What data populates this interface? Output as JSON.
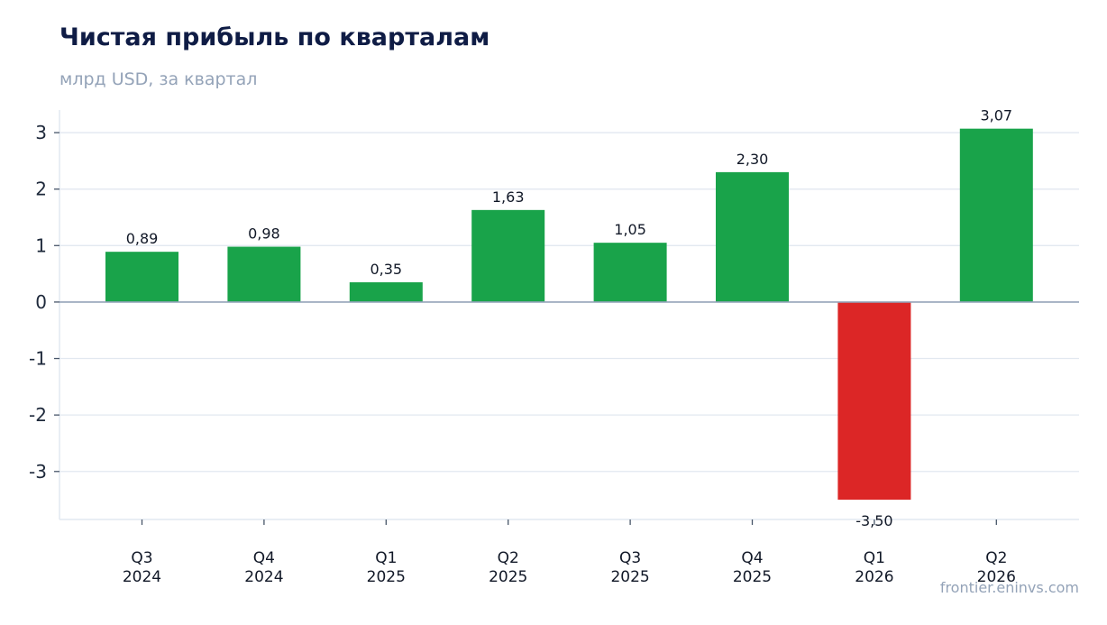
{
  "title": "Чистая прибыль по кварталам",
  "subtitle": "млрд USD, за квартал",
  "source": "frontier.eninvs.com",
  "colors": {
    "positive": "#19a34a",
    "negative": "#dc2626",
    "grid": "#e2e8f0",
    "zero_line": "#94a3b8",
    "title": "#0f1c45",
    "muted": "#94a3b8"
  },
  "chart_data": {
    "type": "bar",
    "categories": [
      [
        "Q3",
        "2024"
      ],
      [
        "Q4",
        "2024"
      ],
      [
        "Q1",
        "2025"
      ],
      [
        "Q2",
        "2025"
      ],
      [
        "Q3",
        "2025"
      ],
      [
        "Q4",
        "2025"
      ],
      [
        "Q1",
        "2026"
      ],
      [
        "Q2",
        "2026"
      ]
    ],
    "values": [
      0.89,
      0.98,
      0.35,
      1.63,
      1.05,
      2.3,
      -3.5,
      3.07
    ],
    "value_labels": [
      "0,89",
      "0,98",
      "0,35",
      "1,63",
      "1,05",
      "2,30",
      "-3,50",
      "3,07"
    ],
    "yticks": [
      -3,
      -2,
      -1,
      0,
      1,
      2,
      3
    ],
    "ytick_labels": [
      "-3",
      "-2",
      "-1",
      "0",
      "1",
      "2",
      "3"
    ],
    "ylim": [
      -3.85,
      3.4
    ],
    "grid": true,
    "legend": false
  }
}
